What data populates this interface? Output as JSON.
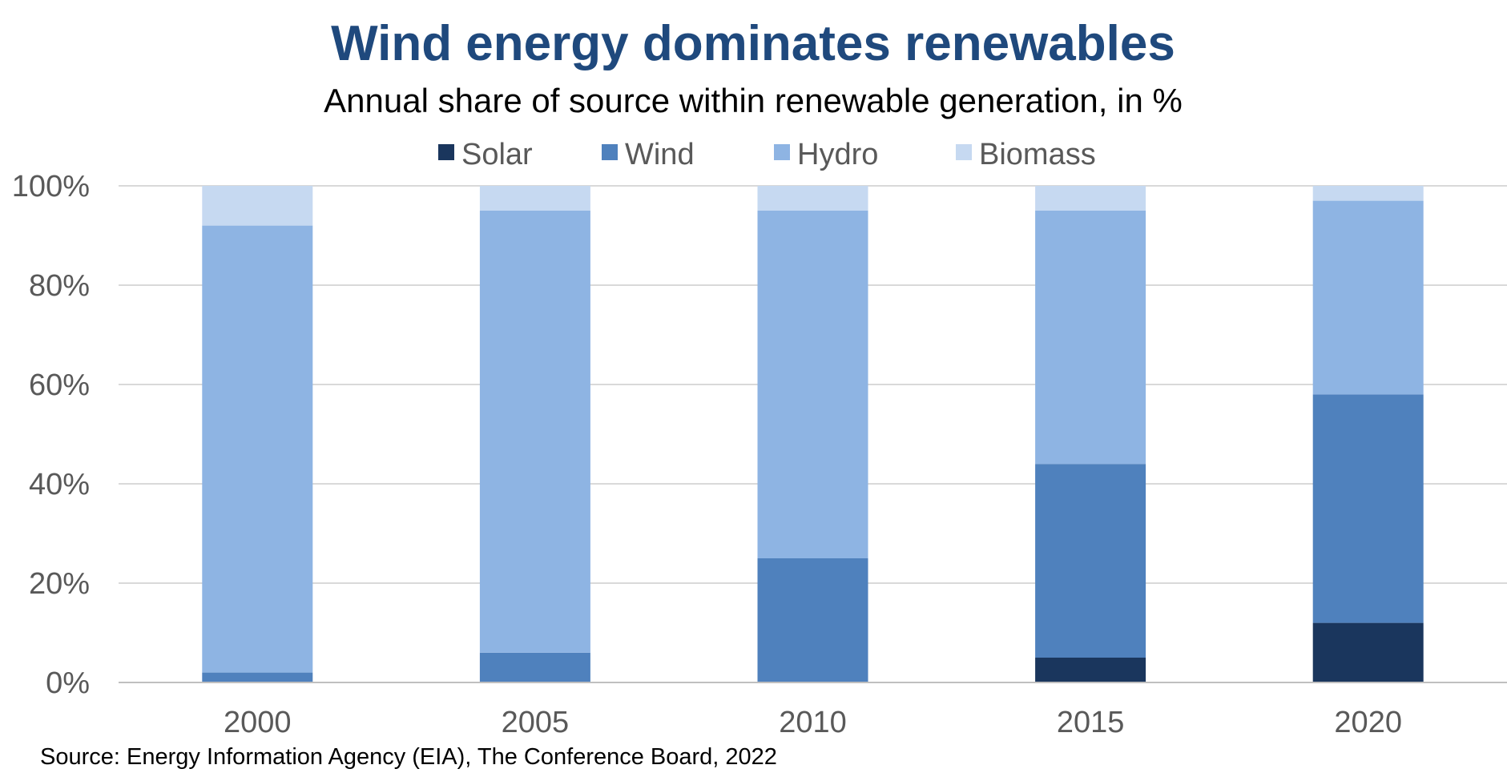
{
  "chart_data": {
    "type": "bar",
    "stacked": true,
    "title": "Wind energy dominates renewables",
    "subtitle": "Annual share of source within renewable generation, in %",
    "source": "Source: Energy Information Agency (EIA), The Conference Board, 2022",
    "categories": [
      "2000",
      "2005",
      "2010",
      "2015",
      "2020"
    ],
    "series": [
      {
        "name": "Solar",
        "color": "#1a365d",
        "values": [
          0,
          0,
          0,
          5,
          12
        ]
      },
      {
        "name": "Wind",
        "color": "#4f81bd",
        "values": [
          2,
          6,
          25,
          39,
          46
        ]
      },
      {
        "name": "Hydro",
        "color": "#8eb4e3",
        "values": [
          90,
          89,
          70,
          51,
          39
        ]
      },
      {
        "name": "Biomass",
        "color": "#c6d9f1",
        "values": [
          8,
          5,
          5,
          5,
          3
        ]
      }
    ],
    "yticks": [
      "0%",
      "20%",
      "40%",
      "60%",
      "80%",
      "100%"
    ],
    "ylim": [
      0,
      100
    ],
    "grid": true,
    "legend": "top-center"
  }
}
